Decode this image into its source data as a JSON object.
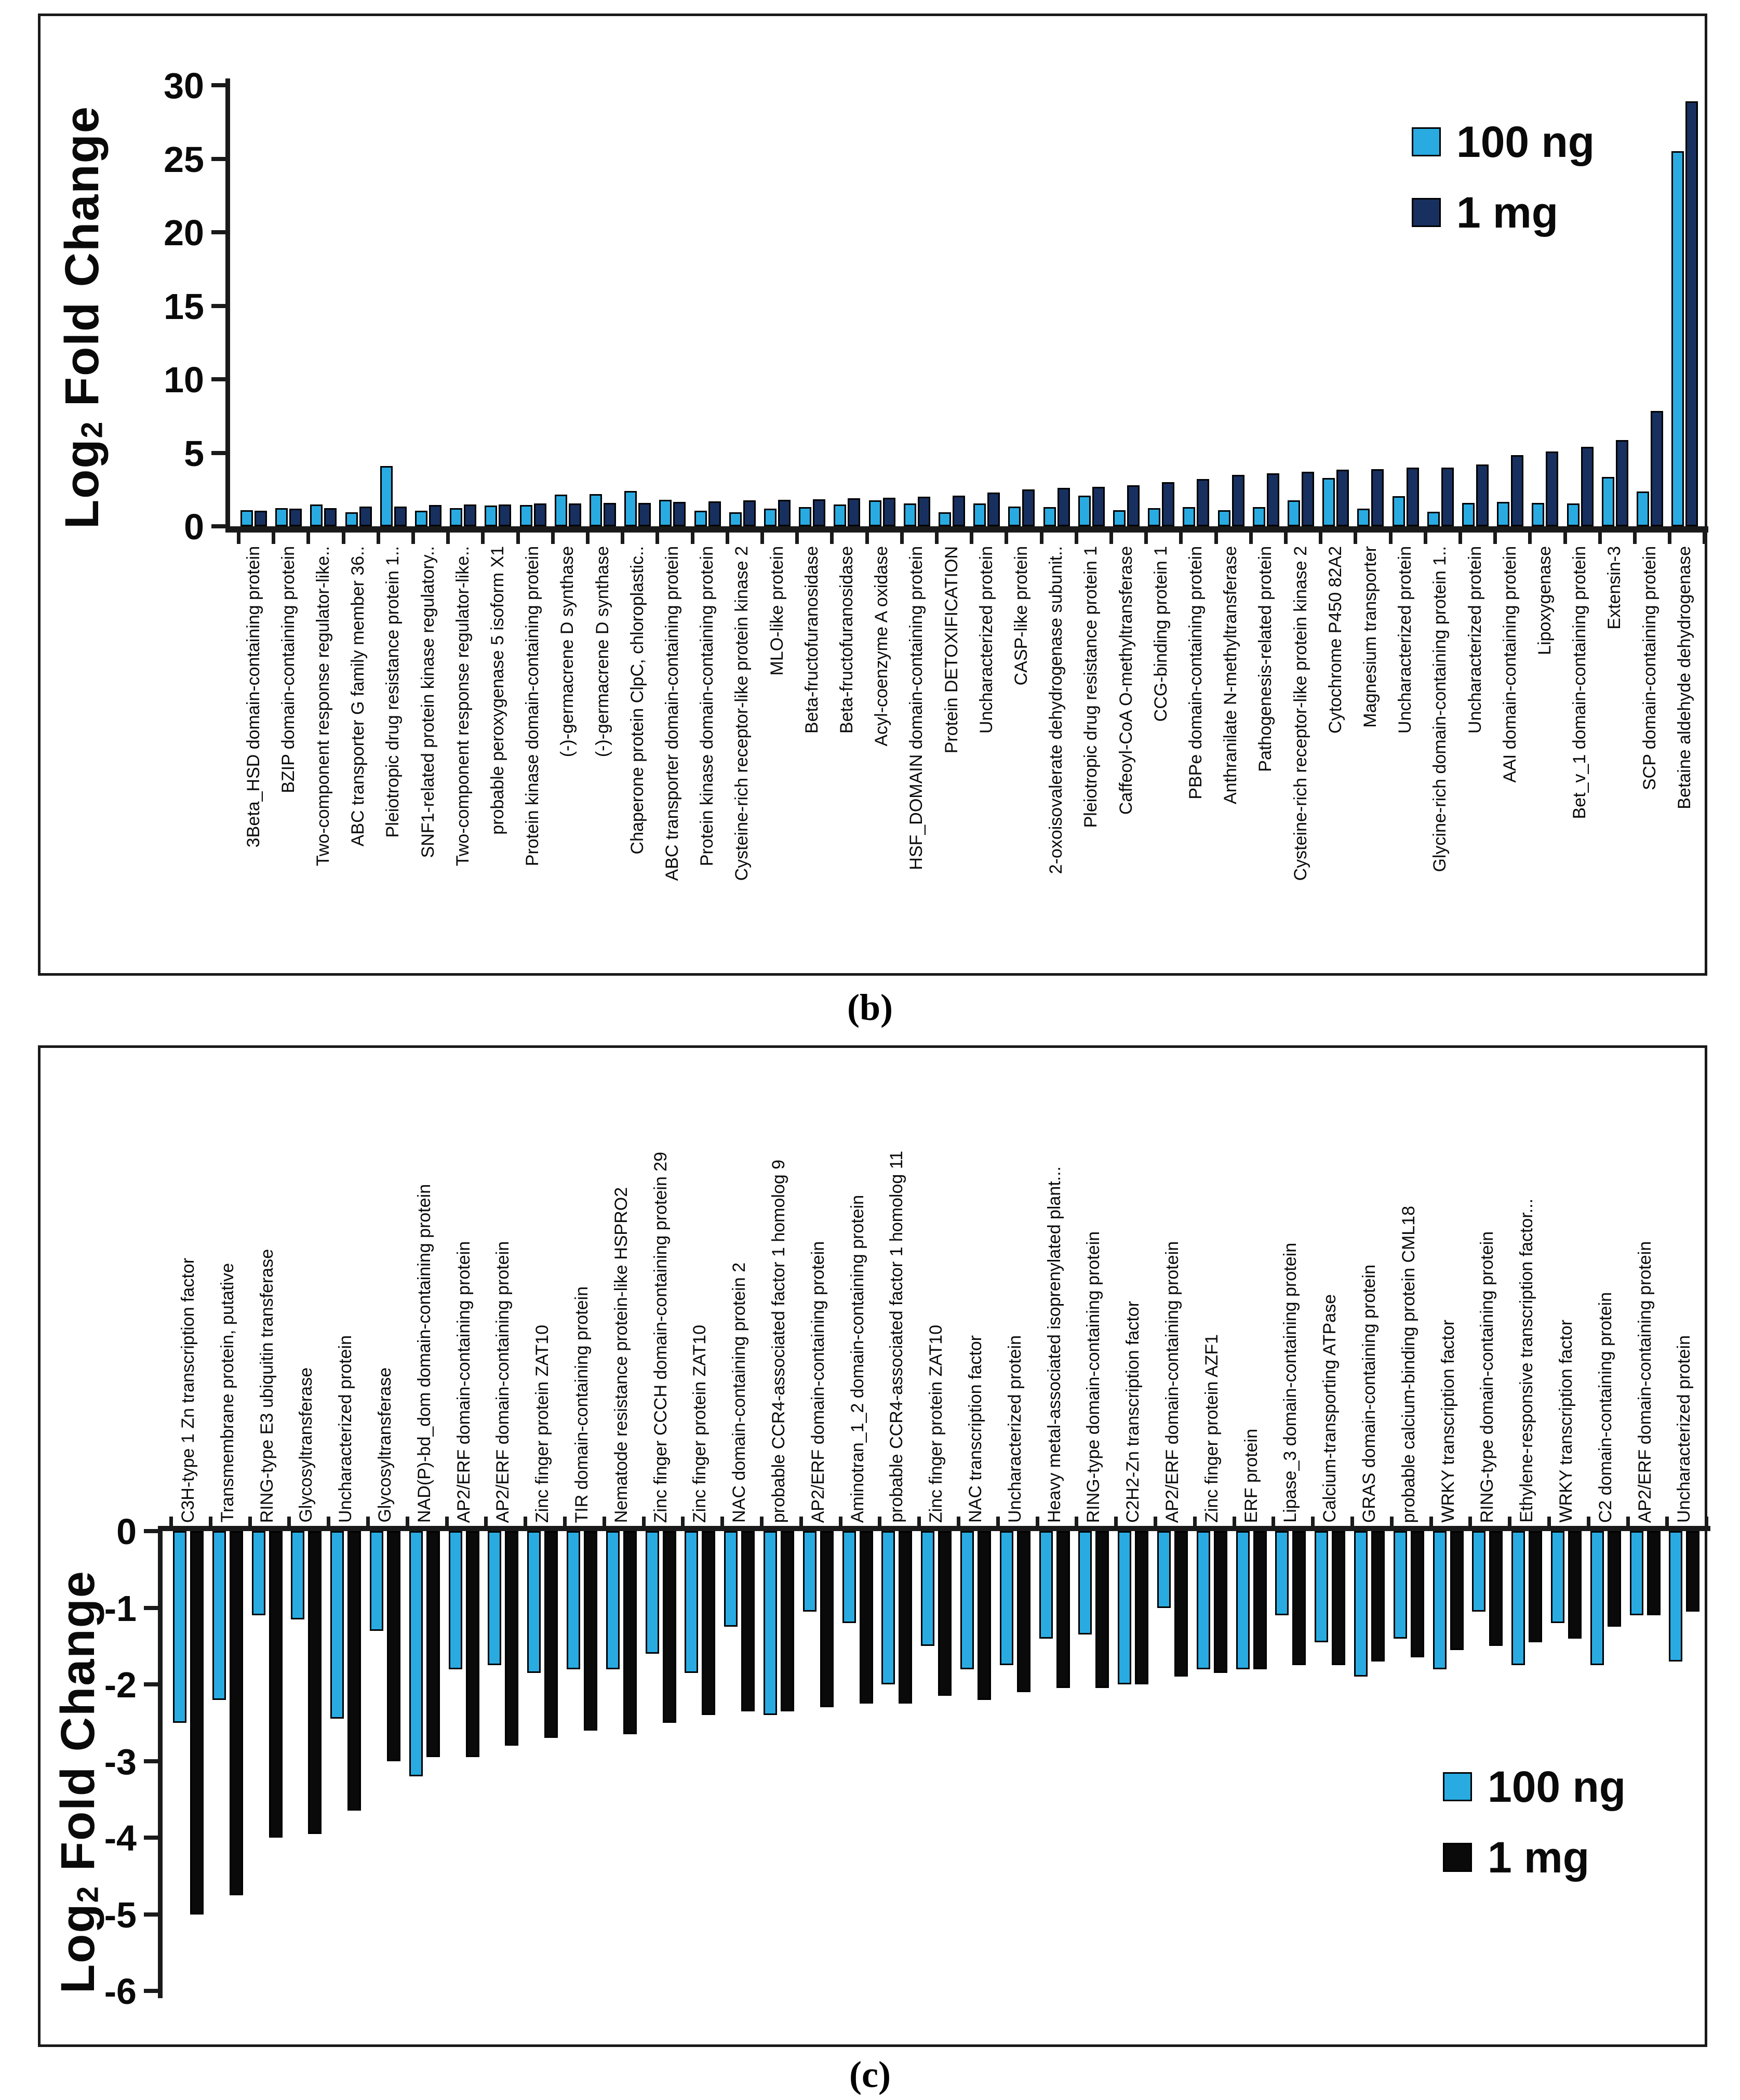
{
  "figure": {
    "caption_b": "(b)",
    "caption_c": "(c)",
    "accent_light_blue": "#29abe2",
    "accent_navy": "#17305f",
    "accent_black": "#0a0a0a"
  },
  "chart_data": [
    {
      "type": "bar",
      "panel": "b",
      "title": "",
      "xlabel": "",
      "ylabel": "Log2 Fold Change",
      "ylabel_parts": {
        "pre": "Log",
        "sub": "2",
        "post": " Fold Change"
      },
      "ylim": [
        0,
        30
      ],
      "yticks": [
        0,
        5,
        10,
        15,
        20,
        25,
        30
      ],
      "grid": false,
      "legend_position": "top-right",
      "categories": [
        "3Beta_HSD domain-containing protein",
        "BZIP domain-containing protein",
        "Two-component response regulator-like..",
        "ABC transporter G family member 36..",
        "Pleiotropic drug resistance protein 1..",
        "SNF1-related protein kinase regulatory..",
        "Two-component response regulator-like..",
        "probable peroxygenase 5 isoform X1",
        "Protein kinase domain-containing protein",
        "(-)-germacrene D synthase",
        "(-)-germacrene D synthase",
        "Chaperone protein ClpC, chloroplastic..",
        "ABC transporter domain-containing protein",
        "Protein kinase domain-containing protein",
        "Cysteine-rich receptor-like protein kinase 2",
        "MLO-like protein",
        "Beta-fructofuranosidase",
        "Beta-fructofuranosidase",
        "Acyl-coenzyme A oxidase",
        "HSF_DOMAIN domain-containing protein",
        "Protein DETOXIFICATION",
        "Uncharacterized protein",
        "CASP-like protein",
        "2-oxoisovalerate dehydrogenase subunit..",
        "Pleiotropic drug resistance protein 1",
        "Caffeoyl-CoA O-methyltransferase",
        "CCG-binding protein 1",
        "PBPe domain-containing protein",
        "Anthranilate N-methyltransferase",
        "Pathogenesis-related protein",
        "Cysteine-rich receptor-like protein kinase 2",
        "Cytochrome P450 82A2",
        "Magnesium transporter",
        "Uncharacterized protein",
        "Glycine-rich domain-containing protein 1..",
        "Uncharacterized protein",
        "AAI domain-containing protein",
        "Lipoxygenase",
        "Bet_v_1 domain-containing protein",
        "Extensin-3",
        "SCP domain-containing protein",
        "Betaine aldehyde dehydrogenase"
      ],
      "series": [
        {
          "name": "100 ng",
          "color": "#29abe2",
          "values": [
            1.1,
            1.25,
            1.5,
            0.95,
            4.1,
            1.05,
            1.25,
            1.4,
            1.45,
            2.15,
            2.2,
            2.4,
            1.8,
            1.05,
            0.95,
            1.2,
            1.3,
            1.5,
            1.75,
            1.55,
            0.95,
            1.55,
            1.35,
            1.3,
            2.1,
            1.1,
            1.25,
            1.3,
            1.1,
            1.3,
            1.75,
            3.3,
            1.2,
            2.05,
            1.0,
            1.6,
            1.65,
            1.6,
            1.55,
            3.35,
            2.35,
            25.5
          ]
        },
        {
          "name": "1 mg",
          "color": "#17305f",
          "values": [
            1.05,
            1.2,
            1.25,
            1.35,
            1.35,
            1.45,
            1.5,
            1.5,
            1.55,
            1.55,
            1.6,
            1.6,
            1.65,
            1.7,
            1.75,
            1.8,
            1.85,
            1.9,
            1.95,
            2.0,
            2.1,
            2.3,
            2.5,
            2.6,
            2.7,
            2.8,
            3.0,
            3.2,
            3.5,
            3.6,
            3.7,
            3.85,
            3.9,
            4.0,
            4.0,
            4.2,
            4.85,
            5.1,
            5.4,
            5.85,
            7.85,
            28.9
          ]
        }
      ]
    },
    {
      "type": "bar",
      "panel": "c",
      "title": "",
      "xlabel": "",
      "ylabel": "Log2 Fold Change",
      "ylabel_parts": {
        "pre": "Log",
        "sub": "2",
        "post": " Fold Change"
      },
      "ylim": [
        -6,
        0
      ],
      "yticks": [
        0,
        -1,
        -2,
        -3,
        -4,
        -5,
        -6
      ],
      "grid": false,
      "legend_position": "bottom-right",
      "categories": [
        "C3H-type 1 Zn transcription factor",
        "Transmembrane protein, putative",
        "RING-type E3 ubiquitin transferase",
        "Glycosyltransferase",
        "Uncharacterized protein",
        "Glycosyltransferase",
        "NAD(P)-bd_dom domain-containing protein",
        "AP2/ERF domain-containing protein",
        "AP2/ERF domain-containing protein",
        "Zinc finger protein ZAT10",
        "TIR domain-containing protein",
        "Nematode resistance protein-like HSPRO2",
        "Zinc finger CCCH domain-containing protein 29",
        "Zinc finger protein ZAT10",
        "NAC domain-containing protein 2",
        "probable CCR4-associated factor 1 homolog 9",
        "AP2/ERF domain-containing protein",
        "Aminotran_1_2 domain-containing protein",
        "probable CCR4-associated factor 1 homolog 11",
        "Zinc finger protein ZAT10",
        "NAC transcription factor",
        "Uncharacterized protein",
        "Heavy metal-associated isoprenylated plant...",
        "RING-type domain-containing protein",
        "C2H2-Zn transcription factor",
        "AP2/ERF domain-containing protein",
        "Zinc finger protein AZF1",
        "ERF protein",
        "Lipase_3 domain-containing protein",
        "Calcium-transporting ATPase",
        "GRAS domain-containing protein",
        "probable calcium-binding protein CML18",
        "WRKY transcription factor",
        "RING-type domain-containing protein",
        "Ethylene-responsive transcription factor...",
        "WRKY transcription factor",
        "C2 domain-containing protein",
        "AP2/ERF domain-containing protein",
        "Uncharacterized protein"
      ],
      "series": [
        {
          "name": "100 ng",
          "color": "#29abe2",
          "values": [
            -2.5,
            -2.2,
            -1.1,
            -1.15,
            -2.45,
            -1.3,
            -3.2,
            -1.8,
            -1.75,
            -1.85,
            -1.8,
            -1.8,
            -1.6,
            -1.85,
            -1.25,
            -2.4,
            -1.05,
            -1.2,
            -2.0,
            -1.5,
            -1.8,
            -1.75,
            -1.4,
            -1.35,
            -2.0,
            -1.0,
            -1.8,
            -1.8,
            -1.1,
            -1.45,
            -1.9,
            -1.4,
            -1.8,
            -1.05,
            -1.75,
            -1.2,
            -1.75,
            -1.1,
            -1.7
          ]
        },
        {
          "name": "1 mg",
          "color": "#0a0a0a",
          "values": [
            -5.0,
            -4.75,
            -4.0,
            -3.95,
            -3.65,
            -3.0,
            -2.95,
            -2.95,
            -2.8,
            -2.7,
            -2.6,
            -2.65,
            -2.5,
            -2.4,
            -2.35,
            -2.35,
            -2.3,
            -2.25,
            -2.25,
            -2.15,
            -2.2,
            -2.1,
            -2.05,
            -2.05,
            -2.0,
            -1.9,
            -1.85,
            -1.8,
            -1.75,
            -1.75,
            -1.7,
            -1.65,
            -1.55,
            -1.5,
            -1.45,
            -1.4,
            -1.25,
            -1.1,
            -1.05
          ]
        }
      ]
    }
  ]
}
